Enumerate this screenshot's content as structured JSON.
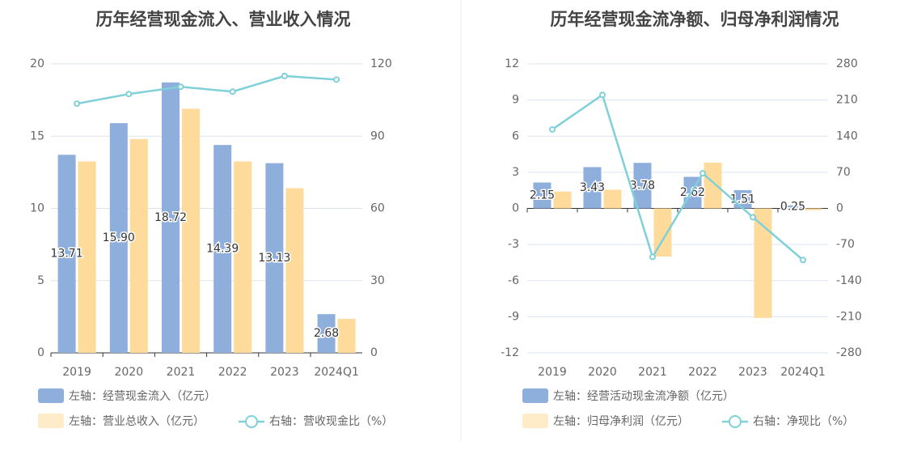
{
  "colors": {
    "bar_primary": "#8eaedc",
    "bar_secondary": "#fedb9b",
    "line": "#7fd0d8",
    "title": "#444444",
    "tick": "#666666",
    "grid": "#dde3ef"
  },
  "chart_data": [
    {
      "type": "bar",
      "title": "历年经营现金流入、营业收入情况",
      "categories": [
        "2019",
        "2020",
        "2021",
        "2022",
        "2023",
        "2024Q1"
      ],
      "left_axis": {
        "ticks": [
          "20",
          "15",
          "10",
          "5",
          "0"
        ],
        "range": [
          0,
          20
        ]
      },
      "right_axis": {
        "ticks": [
          "120",
          "90",
          "60",
          "30",
          "0"
        ],
        "range": [
          0,
          120
        ]
      },
      "series": [
        {
          "name": "左轴：经营现金流入（亿元）",
          "kind": "bar",
          "axis": "left",
          "values": [
            13.71,
            15.9,
            18.72,
            14.39,
            13.13,
            2.68
          ],
          "labels": [
            "13.71",
            "15.90",
            "18.72",
            "14.39",
            "13.13",
            "2.68"
          ]
        },
        {
          "name": "左轴：营业总收入（亿元）",
          "kind": "bar",
          "axis": "left",
          "values": [
            13.25,
            14.8,
            16.9,
            13.25,
            11.4,
            2.35
          ]
        },
        {
          "name": "右轴：营收现金比（%）",
          "kind": "line",
          "axis": "right",
          "values": [
            103.5,
            107.5,
            110.5,
            108.5,
            115.0,
            113.5
          ]
        }
      ],
      "legend": "bottom",
      "grid": true
    },
    {
      "type": "bar",
      "title": "历年经营现金流净额、归母净利润情况",
      "categories": [
        "2019",
        "2020",
        "2021",
        "2022",
        "2023",
        "2024Q1"
      ],
      "left_axis": {
        "ticks": [
          "12",
          "9",
          "6",
          "3",
          "0",
          "-3",
          "-6",
          "-9",
          "-12"
        ],
        "range": [
          -12,
          12
        ]
      },
      "right_axis": {
        "ticks": [
          "280",
          "210",
          "140",
          "70",
          "0",
          "-70",
          "-140",
          "-210",
          "-280"
        ],
        "range": [
          -280,
          280
        ]
      },
      "series": [
        {
          "name": "左轴：经营活动现金流净额（亿元）",
          "kind": "bar",
          "axis": "left",
          "values": [
            2.15,
            3.43,
            3.78,
            2.62,
            1.51,
            0.25
          ],
          "labels": [
            "2.15",
            "3.43",
            "3.78",
            "2.62",
            "1.51",
            "0.25"
          ]
        },
        {
          "name": "左轴：归母净利润（亿元）",
          "kind": "bar",
          "axis": "left",
          "values": [
            1.4,
            1.55,
            -4.0,
            3.8,
            -9.1,
            -0.15
          ]
        },
        {
          "name": "右轴：净现比（%）",
          "kind": "line",
          "axis": "right",
          "values": [
            153,
            220,
            -94,
            68,
            -17,
            -100
          ]
        }
      ],
      "legend": "bottom",
      "grid": true
    }
  ]
}
